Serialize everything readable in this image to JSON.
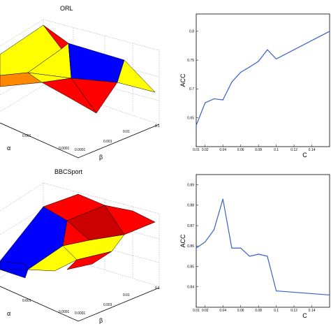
{
  "chart_data": [
    {
      "type": "surface",
      "title": "ORL",
      "alpha_label": "α",
      "beta_label": "β",
      "alpha_ticks": [
        "0.0001",
        "0.001"
      ],
      "beta_ticks": [
        "0.0001",
        "0.001",
        "0.01",
        "0.1"
      ],
      "colors": [
        "#ff0000",
        "#ffff00",
        "#0000ff",
        "#ff8800"
      ]
    },
    {
      "type": "line",
      "series_color": "#3a5fcd",
      "xlabel": "C",
      "ylabel": "ACC",
      "xlim": [
        0.01,
        0.16
      ],
      "ylim": [
        0.6,
        0.83
      ],
      "xticks": [
        "0.01",
        "0.02",
        "0.04",
        "0.06",
        "0.08",
        "0.1",
        "0.12",
        "0.14"
      ],
      "yticks": [
        "0.65",
        "0.7",
        "0.75",
        "0.8"
      ],
      "x": [
        0.01,
        0.02,
        0.03,
        0.04,
        0.05,
        0.06,
        0.07,
        0.08,
        0.09,
        0.1,
        0.16
      ],
      "y": [
        0.637,
        0.676,
        0.683,
        0.681,
        0.712,
        0.729,
        0.738,
        0.748,
        0.768,
        0.752,
        0.8
      ]
    },
    {
      "type": "surface",
      "title": "BBCSport",
      "alpha_label": "α",
      "beta_label": "β",
      "alpha_ticks": [
        "0.0001",
        "0.001"
      ],
      "beta_ticks": [
        "0.0001",
        "0.001",
        "0.01",
        "0.1"
      ],
      "colors": [
        "#ff0000",
        "#ffff00",
        "#0000ff",
        "#cc0000"
      ]
    },
    {
      "type": "line",
      "series_color": "#3a5fcd",
      "xlabel": "C",
      "ylabel": "ACC",
      "xlim": [
        0.01,
        0.16
      ],
      "ylim": [
        0.83,
        0.895
      ],
      "xticks": [
        "0.01",
        "0.02",
        "0.04",
        "0.06",
        "0.08",
        "0.1",
        "0.12",
        "0.14"
      ],
      "yticks": [
        "0.84",
        "0.85",
        "0.86",
        "0.87",
        "0.88",
        "0.89"
      ],
      "x": [
        0.01,
        0.02,
        0.03,
        0.04,
        0.05,
        0.06,
        0.07,
        0.08,
        0.09,
        0.1,
        0.16
      ],
      "y": [
        0.859,
        0.862,
        0.868,
        0.883,
        0.859,
        0.859,
        0.855,
        0.856,
        0.855,
        0.838,
        0.836
      ]
    }
  ]
}
